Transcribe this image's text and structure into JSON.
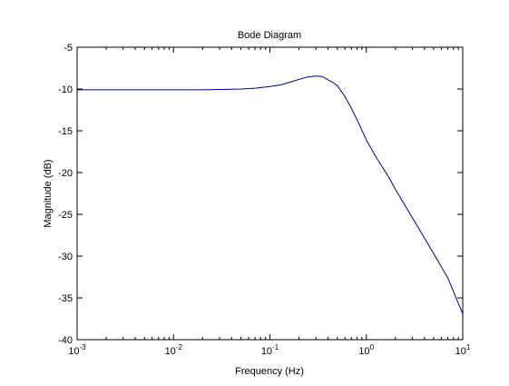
{
  "chart_data": {
    "type": "line",
    "title": "Bode Diagram",
    "xlabel": "Frequency  (Hz)",
    "ylabel": "Magnitude (dB)",
    "xscale": "log",
    "xlim": [
      0.001,
      10
    ],
    "ylim": [
      -40,
      -5
    ],
    "x_ticks": [
      0.001,
      0.01,
      0.1,
      1,
      10
    ],
    "x_tick_labels": [
      {
        "base": "10",
        "exp": "-3"
      },
      {
        "base": "10",
        "exp": "-2"
      },
      {
        "base": "10",
        "exp": "-1"
      },
      {
        "base": "10",
        "exp": "0"
      },
      {
        "base": "10",
        "exp": "1"
      }
    ],
    "y_ticks": [
      -40,
      -35,
      -30,
      -25,
      -20,
      -15,
      -10,
      -5
    ],
    "y_tick_labels": [
      "-40",
      "-35",
      "-30",
      "-25",
      "-20",
      "-15",
      "-10",
      "-5"
    ],
    "grid": false,
    "line_color": "#00008b",
    "series": [
      {
        "x": [
          0.001,
          0.003,
          0.01,
          0.02,
          0.03,
          0.05,
          0.07,
          0.1,
          0.13,
          0.17,
          0.2,
          0.25,
          0.3,
          0.35,
          0.4,
          0.45,
          0.5,
          0.6,
          0.7,
          0.85,
          1.0,
          1.3,
          1.7,
          2,
          3,
          5,
          7,
          10
        ],
        "y": [
          -10.1,
          -10.1,
          -10.1,
          -10.1,
          -10.05,
          -10.0,
          -9.9,
          -9.7,
          -9.5,
          -9.1,
          -8.85,
          -8.55,
          -8.45,
          -8.5,
          -8.9,
          -9.2,
          -9.6,
          -10.9,
          -12.3,
          -14.3,
          -16.1,
          -18.4,
          -20.5,
          -22.0,
          -25.4,
          -29.7,
          -32.6,
          -36.9
        ]
      }
    ]
  }
}
